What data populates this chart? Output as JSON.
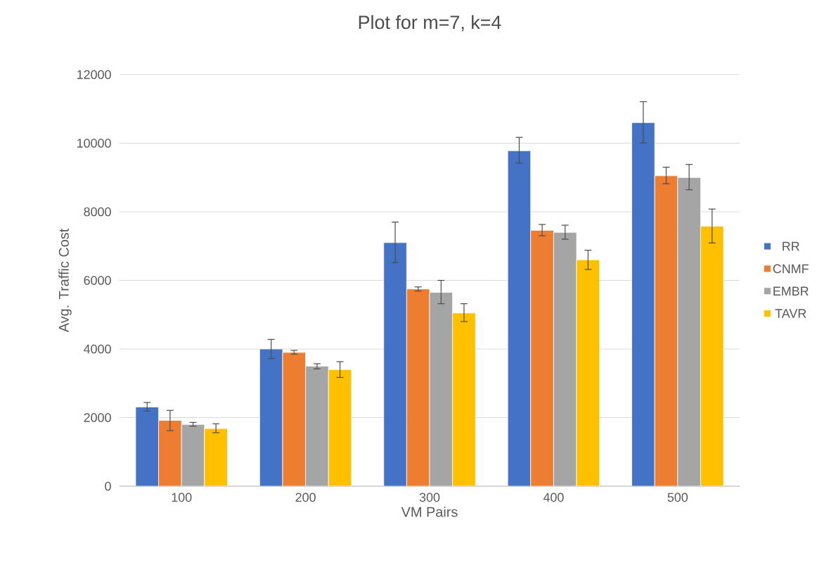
{
  "chart_data": {
    "type": "bar",
    "title": "Plot for m=7, k=4",
    "xlabel": "VM Pairs",
    "ylabel": "Avg. Traffic Cost",
    "categories": [
      "100",
      "200",
      "300",
      "400",
      "500"
    ],
    "series": [
      {
        "name": "RR",
        "color": "#4472c4",
        "values": [
          2310,
          4000,
          7100,
          9780,
          10600
        ],
        "errors": [
          [
            2190,
            2440
          ],
          [
            3720,
            4280
          ],
          [
            6520,
            7700
          ],
          [
            9420,
            10170
          ],
          [
            10010,
            11210
          ]
        ]
      },
      {
        "name": "CNMF",
        "color": "#ed7d31",
        "values": [
          1920,
          3900,
          5750,
          7460,
          9050
        ],
        "errors": [
          [
            1620,
            2210
          ],
          [
            3850,
            3960
          ],
          [
            5690,
            5810
          ],
          [
            7300,
            7630
          ],
          [
            8820,
            9300
          ]
        ]
      },
      {
        "name": "EMBR",
        "color": "#a5a5a5",
        "values": [
          1800,
          3500,
          5650,
          7400,
          9000
        ],
        "errors": [
          [
            1750,
            1860
          ],
          [
            3420,
            3570
          ],
          [
            5320,
            6000
          ],
          [
            7200,
            7610
          ],
          [
            8640,
            9380
          ]
        ]
      },
      {
        "name": "TAVR",
        "color": "#ffc000",
        "values": [
          1680,
          3400,
          5050,
          6600,
          7580
        ],
        "errors": [
          [
            1560,
            1820
          ],
          [
            3170,
            3630
          ],
          [
            4800,
            5320
          ],
          [
            6320,
            6880
          ],
          [
            7090,
            8080
          ]
        ]
      }
    ],
    "ylim": [
      0,
      12000
    ],
    "yticks": [
      0,
      2000,
      4000,
      6000,
      8000,
      10000,
      12000
    ],
    "grid": "y",
    "legend": "right"
  }
}
